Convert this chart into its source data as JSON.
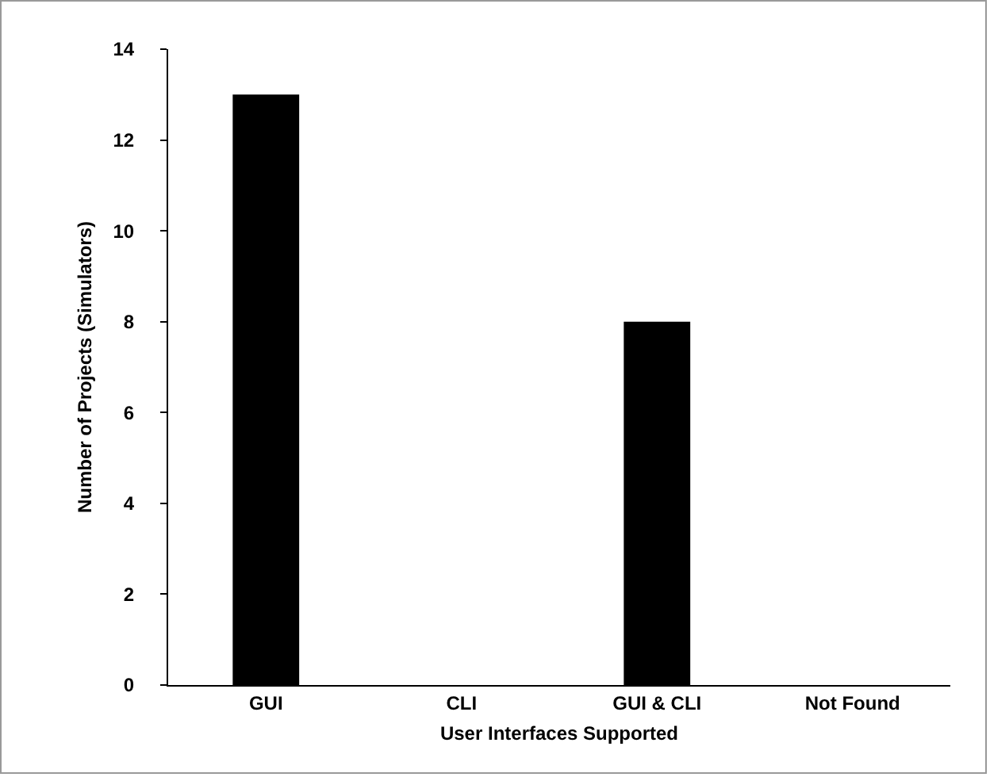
{
  "chart_data": {
    "type": "bar",
    "xlabel": "User Interfaces Supported",
    "ylabel": "Number of Projects (Simulators)",
    "categories": [
      "GUI",
      "CLI",
      "GUI & CLI",
      "Not Found"
    ],
    "values": [
      13,
      0,
      8,
      0
    ],
    "color": "#000000",
    "ylim": [
      0,
      14
    ],
    "yticks": [
      0,
      2,
      4,
      6,
      8,
      10,
      12,
      14
    ],
    "grid": false,
    "legend": false
  }
}
